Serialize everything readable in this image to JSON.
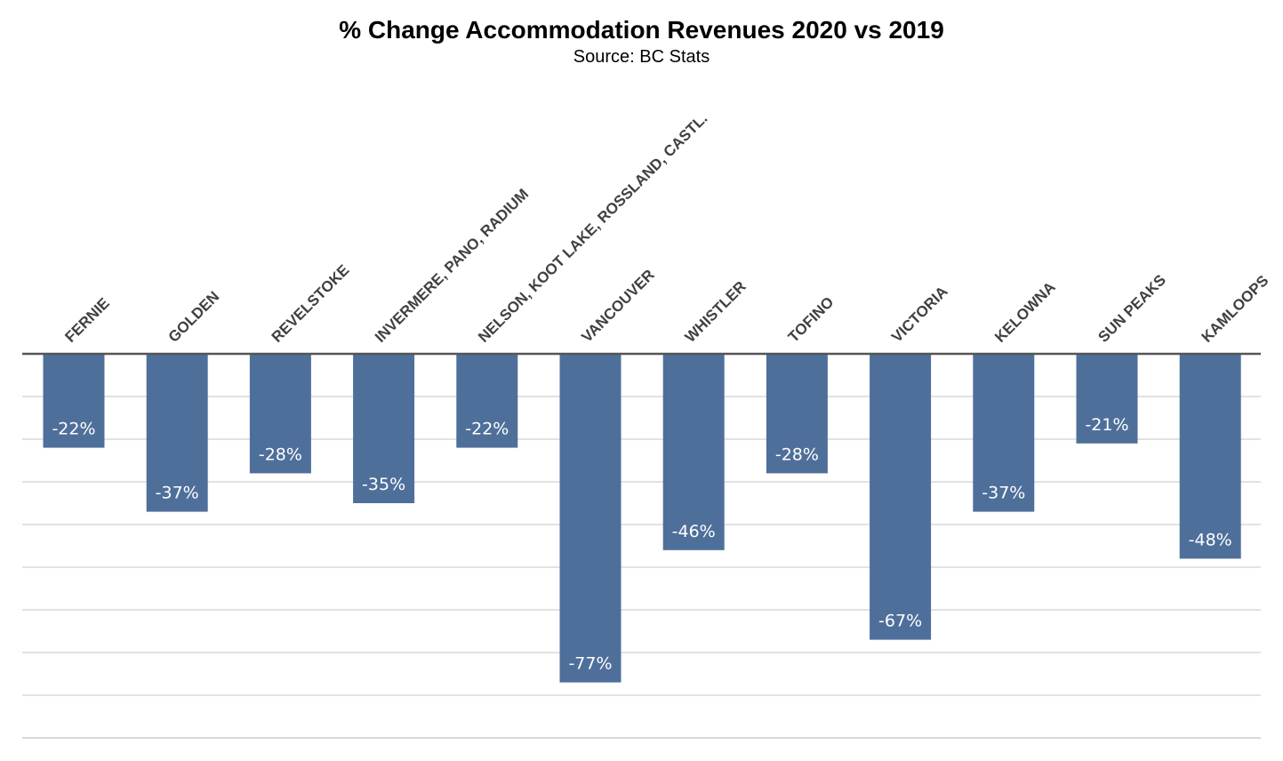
{
  "chart_data": {
    "type": "bar",
    "title": "% Change Accommodation Revenues 2020 vs 2019",
    "subtitle": "Source: BC Stats",
    "categories": [
      "FERNIE",
      "GOLDEN",
      "REVELSTOKE",
      "INVERMERE, PANO, RADIUM",
      "NELSON, KOOT LAKE, ROSSLAND, CASTL.",
      "VANCOUVER",
      "WHISTLER",
      "TOFINO",
      "VICTORIA",
      "KELOWNA",
      "SUN PEAKS",
      "KAMLOOPS"
    ],
    "values": [
      -22,
      -37,
      -28,
      -35,
      -22,
      -77,
      -46,
      -28,
      -67,
      -37,
      -21,
      -48
    ],
    "data_labels": [
      "-22%",
      "-37%",
      "-28%",
      "-35%",
      "-22%",
      "-77%",
      "-46%",
      "-28%",
      "-67%",
      "-37%",
      "-21%",
      "-48%"
    ],
    "ylim": [
      -90,
      0
    ],
    "grid": true,
    "category_label_position": "top, rotated",
    "bar_color": "#4f6f9b",
    "label_color": "#ffffff",
    "category_label_color": "#404040",
    "grid_color": "#d9d9d9",
    "baseline_color": "#555555"
  }
}
